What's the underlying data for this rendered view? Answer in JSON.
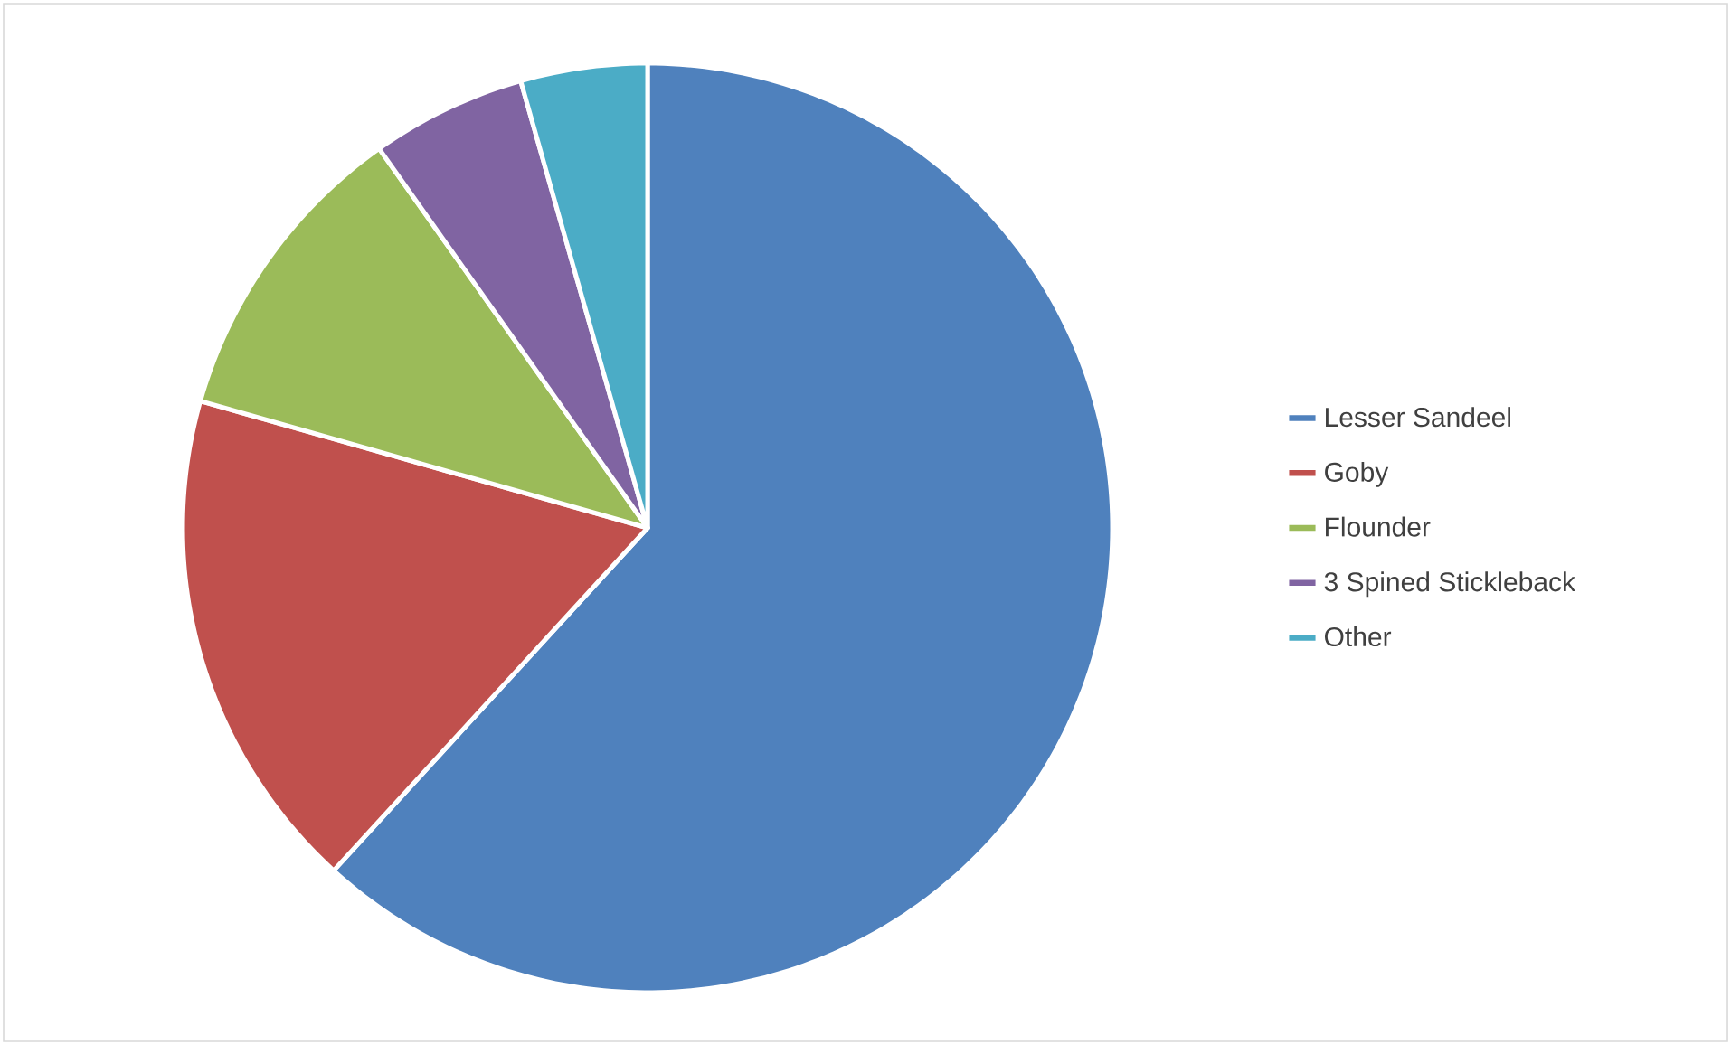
{
  "chart_data": {
    "type": "pie",
    "categories": [
      "Lesser Sandeel",
      "Goby",
      "Flounder",
      "3 Spined Stickleback",
      "Other"
    ],
    "values": [
      61.8,
      17.6,
      10.8,
      5.4,
      4.4
    ],
    "colors": [
      "#4f81bd",
      "#c0504d",
      "#9bbb59",
      "#8064a2",
      "#4bacc6"
    ],
    "legend": "right"
  }
}
